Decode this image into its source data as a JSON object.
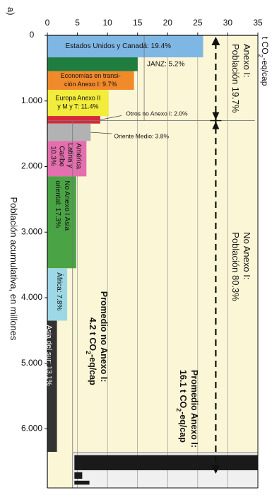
{
  "chart_data": {
    "type": "bar",
    "panel_label": "a)",
    "ylabel": "t CO2-eq/cap",
    "xlabel": "Población acumulativa, en millones",
    "ylim": [
      0,
      35
    ],
    "xlim": [
      0,
      6900
    ],
    "yticks": [
      "35",
      "30",
      "25",
      "20",
      "15",
      "10",
      "5",
      "0"
    ],
    "xticks": [
      "0",
      "1.000",
      "2.000",
      "3.000",
      "4.000",
      "5.000",
      "6.000"
    ],
    "annex1_label": [
      "Anexo I:",
      "Población 19.7%"
    ],
    "nonannex1_label": [
      "No Anexo I:",
      "Población 80.3%"
    ],
    "avg_annex1_label": [
      "Promedio Anexo I:",
      "16.1 t CO2-eq/cap"
    ],
    "avg_nonannex1_label": [
      "Promedio no Anexo I:",
      "4.2 t CO2-eq/cap"
    ],
    "regions": [
      {
        "label": "Estados Unidos y Canadá: 19.4%",
        "x0": 0,
        "x1": 335,
        "y": 25.9,
        "color": "#7fb7e4"
      },
      {
        "label": "JANZ: 5.2%",
        "x0": 335,
        "x1": 545,
        "y": 15.0,
        "color": "#1e7d3f"
      },
      {
        "label": "Economías en transición Anexo I: 9.7%",
        "x0": 545,
        "x1": 830,
        "y": 14.4,
        "color": "#f08a2b"
      },
      {
        "label": "Europa Anexo II y M y T: 11.4%",
        "x0": 830,
        "x1": 1230,
        "y": 10.2,
        "color": "#f2ec3d"
      },
      {
        "label": "Otros no Anexo I: 2.0%",
        "x0": 1230,
        "x1": 1345,
        "y": 8.8,
        "color": "#d8283a"
      },
      {
        "label": "Oriente Medio: 3.8%",
        "x0": 1345,
        "x1": 1610,
        "y": 7.2,
        "color": "#b2b2b2"
      },
      {
        "label": "América Latina y Caribe 10.3%",
        "x0": 1610,
        "x1": 2150,
        "y": 6.5,
        "color": "#e46fae"
      },
      {
        "label": "No Anexo I Asia oriental: 17.3%",
        "x0": 2150,
        "x1": 3550,
        "y": 4.8,
        "color": "#4aa345"
      },
      {
        "label": "África: 7.8%",
        "x0": 3550,
        "x1": 4350,
        "y": 3.3,
        "color": "#9dd8e6"
      },
      {
        "label": "Asia del sur: 13.1%",
        "x0": 4350,
        "x1": 6350,
        "y": 1.6,
        "color": "#333333"
      }
    ],
    "averages": {
      "annex1": 16.1,
      "nonannex1": 4.2,
      "divider_x": 1300
    },
    "population_arrow_y": 28,
    "excess_bars": [
      {
        "x0": 6400,
        "x1": 6630,
        "y0": 4.5,
        "y1": 35
      },
      {
        "x0": 6660,
        "x1": 6760,
        "y0": 4.5,
        "y1": 5.8
      },
      {
        "x0": 6790,
        "x1": 6850,
        "y0": 4.5,
        "y1": 7.0
      }
    ],
    "colors": {
      "background": "#fbf6d6",
      "gridline": "#8a8a8a",
      "excess_panel": "#f0f0f0",
      "excess_bar": "#1a1a1a"
    }
  }
}
